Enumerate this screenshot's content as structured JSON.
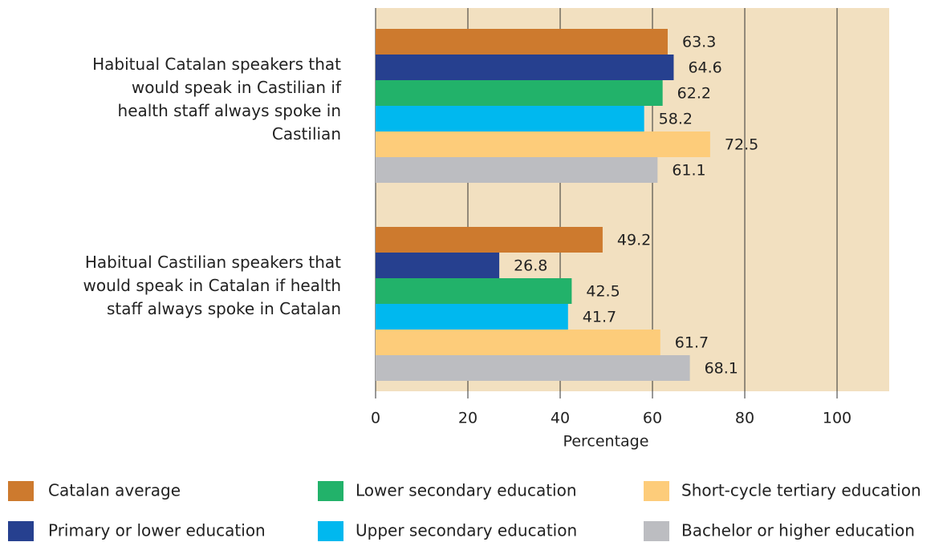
{
  "chart_data": {
    "type": "bar",
    "orientation": "horizontal",
    "categories": [
      "Habitual Catalan speakers that would speak in Castilian if health staff always spoke in Castilian",
      "Habitual Castilian speakers that would speak in Catalan if health staff always spoke in Catalan"
    ],
    "series": [
      {
        "name": "Catalan average",
        "color": "#cd7a2e",
        "values": [
          63.3,
          49.2
        ]
      },
      {
        "name": "Primary or lower education",
        "color": "#26408f",
        "values": [
          64.6,
          26.8
        ]
      },
      {
        "name": "Lower secondary education",
        "color": "#22b26a",
        "values": [
          62.2,
          42.5
        ]
      },
      {
        "name": "Upper secondary education",
        "color": "#00b8ef",
        "values": [
          58.2,
          41.7
        ]
      },
      {
        "name": "Short-cycle tertiary education",
        "color": "#fdcc7a",
        "values": [
          72.5,
          61.7
        ]
      },
      {
        "name": "Bachelor or higher education",
        "color": "#bcbdc1",
        "values": [
          61.1,
          68.1
        ]
      }
    ],
    "xlabel": "Percentage",
    "xlim": [
      0,
      111.3
    ],
    "xticks": [
      0,
      20,
      40,
      60,
      80,
      100
    ],
    "grid": true,
    "plot_background": "#f2e0c0",
    "legend": "bottom"
  }
}
